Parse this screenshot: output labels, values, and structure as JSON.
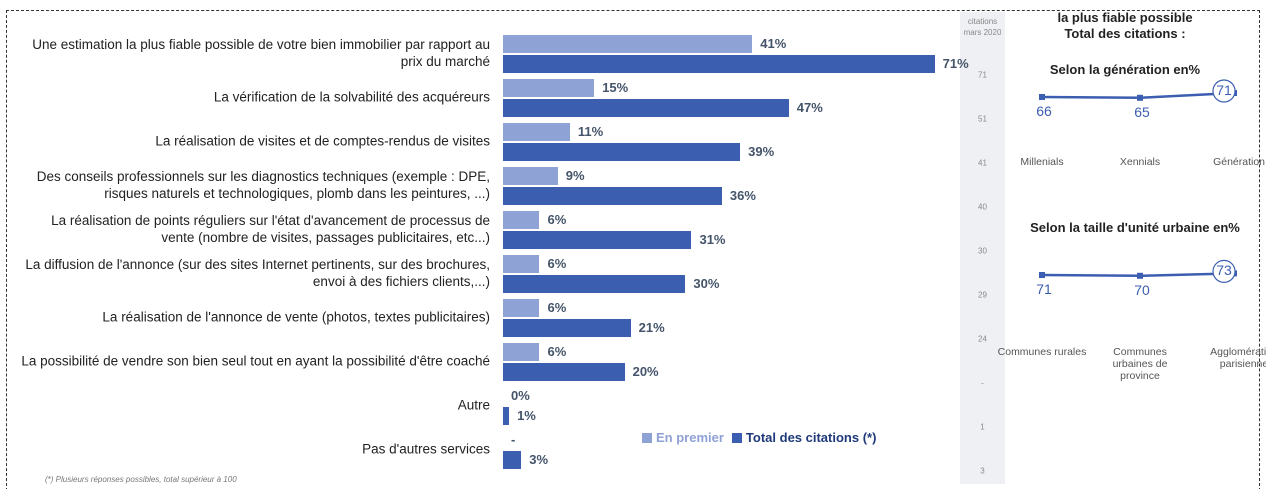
{
  "chart_data": [
    {
      "type": "bar",
      "categories": [
        "Une estimation la plus fiable possible de votre bien immobilier par rapport au prix du marché",
        "La vérification de la solvabilité des acquéreurs",
        "La réalisation de visites et de comptes-rendus de visites",
        "Des conseils professionnels sur les diagnostics techniques (exemple : DPE, risques naturels et technologiques, plomb dans les peintures, ...)",
        "La réalisation de points réguliers sur l'état d'avancement de processus de vente (nombre de visites, passages publicitaires, etc...)",
        "La diffusion de l'annonce (sur des sites Internet pertinents, sur des brochures, envoi à des fichiers clients,...)",
        "La réalisation de l'annonce de vente (photos, textes publicitaires)",
        "La possibilité de vendre son bien seul tout en ayant la possibilité d'être coaché",
        "Autre",
        "Pas d'autres services"
      ],
      "series": [
        {
          "name": "En premier",
          "color": "#8fa2d5",
          "values": [
            41,
            15,
            11,
            9,
            6,
            6,
            6,
            6,
            0,
            null
          ],
          "value_labels": [
            "41%",
            "15%",
            "11%",
            "9%",
            "6%",
            "6%",
            "6%",
            "6%",
            "0%",
            "-"
          ]
        },
        {
          "name": "Total des citations (*)",
          "color": "#3c5eb0",
          "values": [
            71,
            47,
            39,
            36,
            31,
            30,
            21,
            20,
            1,
            3
          ],
          "value_labels": [
            "71%",
            "47%",
            "39%",
            "36%",
            "31%",
            "30%",
            "21%",
            "20%",
            "1%",
            "3%"
          ]
        }
      ],
      "footnote": "(*) Plusieurs réponses possibles, total supérieur à 100",
      "side_column": {
        "header": "citations mars 2020",
        "values": [
          71,
          51,
          41,
          40,
          30,
          29,
          24,
          "-",
          1,
          3
        ]
      }
    },
    {
      "type": "line",
      "title": "la plus fiable possible",
      "subtitle": "Total des citations :",
      "heading": "Selon la génération en%",
      "categories": [
        "Millenials",
        "Xennials",
        "Génération X"
      ],
      "values": [
        66,
        65,
        71
      ],
      "color": "#3c5eb0"
    },
    {
      "type": "line",
      "heading": "Selon la taille d'unité urbaine en%",
      "categories": [
        "Communes rurales",
        "Communes urbaines de province",
        "Agglomération parisienne"
      ],
      "values": [
        71,
        70,
        73
      ],
      "color": "#3c5eb0"
    }
  ]
}
